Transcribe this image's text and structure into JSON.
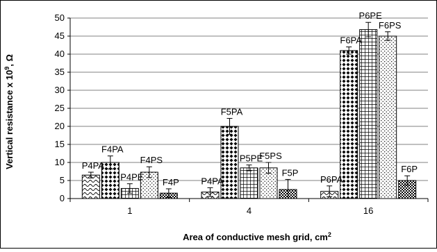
{
  "chart_data": {
    "type": "bar",
    "xlabel": "Area of conductive mesh grid, cm",
    "xlabel_superscript": "2",
    "ylabel_prefix": "Vertical resistance x 10",
    "ylabel_superscript": "9",
    "ylabel_suffix": ", Ω",
    "ylim": [
      0,
      50
    ],
    "yticks": [
      0,
      5,
      10,
      15,
      20,
      25,
      30,
      35,
      40,
      45,
      50
    ],
    "grid": true,
    "legend": "none",
    "categories": [
      "1",
      "4",
      "16"
    ],
    "groups": [
      {
        "category": "1",
        "bars": [
          {
            "label": "P4PA",
            "value": 6.5,
            "error": 0.8,
            "pattern": "wave"
          },
          {
            "label": "F4PA",
            "value": 10.0,
            "error": 1.8,
            "pattern": "diamond"
          },
          {
            "label": "P4PE",
            "value": 2.8,
            "error": 1.3,
            "pattern": "grid"
          },
          {
            "label": "F4PS",
            "value": 7.3,
            "error": 1.5,
            "pattern": "dots"
          },
          {
            "label": "F4P",
            "value": 1.5,
            "error": 1.2,
            "pattern": "check"
          }
        ]
      },
      {
        "category": "4",
        "bars": [
          {
            "label": "P4PA",
            "value": 1.8,
            "error": 1.2,
            "pattern": "wave"
          },
          {
            "label": "F5PA",
            "value": 20.0,
            "error": 2.2,
            "pattern": "diamond"
          },
          {
            "label": "P5PE",
            "value": 8.5,
            "error": 0.8,
            "pattern": "grid"
          },
          {
            "label": "F5PS",
            "value": 8.5,
            "error": 1.5,
            "pattern": "dots"
          },
          {
            "label": "F5P",
            "value": 2.5,
            "error": 2.8,
            "pattern": "check"
          }
        ]
      },
      {
        "category": "16",
        "bars": [
          {
            "label": "P6PA",
            "value": 2.0,
            "error": 1.5,
            "pattern": "wave"
          },
          {
            "label": "F6PA",
            "value": 41.0,
            "error": 1.0,
            "pattern": "diamond"
          },
          {
            "label": "P6PE",
            "value": 46.8,
            "error": 2.0,
            "pattern": "grid"
          },
          {
            "label": "F6PS",
            "value": 45.0,
            "error": 1.2,
            "pattern": "dots"
          },
          {
            "label": "F6P",
            "value": 5.0,
            "error": 1.3,
            "pattern": "check"
          }
        ]
      }
    ]
  }
}
